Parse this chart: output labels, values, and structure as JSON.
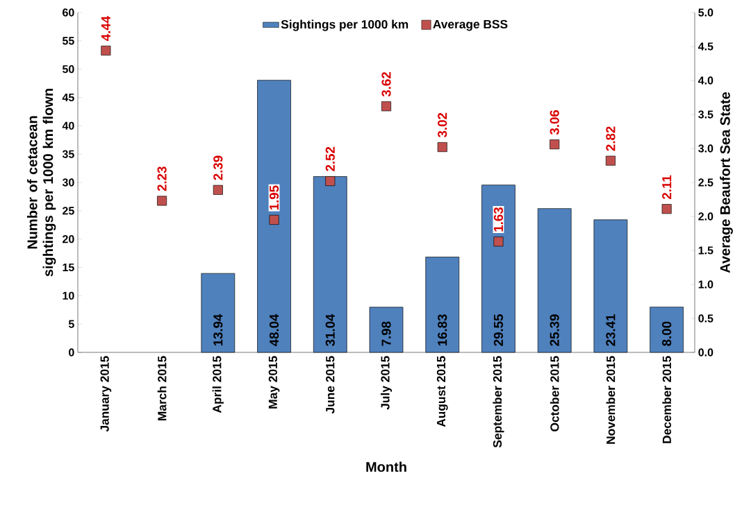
{
  "chart_data": {
    "type": "bar",
    "xlabel": "Month",
    "ylabel": "Number of cetacean sightings per 1000 km flown",
    "y2label": "Average Beaufort Sea State",
    "categories": [
      "January 2015",
      "March 2015",
      "April 2015",
      "May 2015",
      "June 2015",
      "July 2015",
      "August 2015",
      "September 2015",
      "October 2015",
      "November 2015",
      "December 2015"
    ],
    "series": [
      {
        "name": "Sightings per 1000 km",
        "color": "#4f81bd",
        "values": [
          null,
          null,
          13.94,
          48.04,
          31.04,
          7.98,
          16.83,
          29.55,
          25.39,
          23.41,
          8.0
        ],
        "value_labels": [
          null,
          null,
          "13.94",
          "48.04",
          "31.04",
          "7.98",
          "16.83",
          "29.55",
          "25.39",
          "23.41",
          "8.00"
        ]
      },
      {
        "name": "Average BSS",
        "type": "scatter",
        "axis": "y2",
        "color": "#c0504d",
        "values": [
          4.44,
          2.23,
          2.39,
          1.95,
          2.52,
          3.62,
          3.02,
          1.63,
          3.06,
          2.82,
          2.11
        ],
        "value_labels": [
          "4.44",
          "2.23",
          "2.39",
          "1.95",
          "2.52",
          "3.62",
          "3.02",
          "1.63",
          "3.06",
          "2.82",
          "2.11"
        ]
      }
    ],
    "marker": "square",
    "legend": "top",
    "grid": false,
    "ylim": [
      0,
      60
    ],
    "yticks": [
      0,
      5,
      10,
      15,
      20,
      25,
      30,
      35,
      40,
      45,
      50,
      55,
      60
    ],
    "y2lim": [
      0,
      5
    ],
    "y2ticks": [
      {
        "value": 0,
        "label": "0.0"
      },
      {
        "value": 0.5,
        "label": "0.5"
      },
      {
        "value": 1,
        "label": "1.0"
      },
      {
        "value": 1.5,
        "label": "1.5"
      },
      {
        "value": 2,
        "label": "2.0"
      },
      {
        "value": 2.5,
        "label": "2.5"
      },
      {
        "value": 3,
        "label": "3.0"
      },
      {
        "value": 3.5,
        "label": "3.5"
      },
      {
        "value": 4,
        "label": "4.0"
      },
      {
        "value": 4.5,
        "label": "4.5"
      },
      {
        "value": 5,
        "label": "5.0"
      }
    ]
  }
}
